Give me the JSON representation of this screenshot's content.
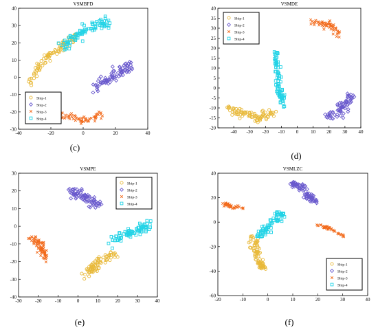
{
  "colors": {
    "ship1": "#e8b93a",
    "ship2": "#6a5acd",
    "ship3": "#f26a1b",
    "ship4": "#22d3e6",
    "axis": "#000000",
    "outlier_green": "#2e8b57"
  },
  "chart_data": [
    {
      "type": "scatter",
      "panel_caption": "(c)",
      "title": "VSMBFD",
      "xlim": [
        -40,
        40
      ],
      "ylim": [
        -30,
        40
      ],
      "xticks": [
        -40,
        -20,
        0,
        20,
        40
      ],
      "yticks": [
        -30,
        -20,
        -10,
        0,
        10,
        20,
        30,
        40
      ],
      "legend_position": "bottom-left",
      "series": [
        {
          "name": "Ship-1",
          "color_key": "ship1",
          "clusters": [
            {
              "path": [
                [
                  -35,
                  -4
                ],
                [
                  -30,
                  2
                ],
                [
                  -26,
                  8
                ],
                [
                  -22,
                  12
                ],
                [
                  -16,
                  16
                ],
                [
                  -12,
                  18
                ],
                [
                  -8,
                  22
                ],
                [
                  -4,
                  24
                ]
              ],
              "n": 90,
              "spread": 2.2
            }
          ]
        },
        {
          "name": "Ship-2",
          "color_key": "ship2",
          "clusters": [
            {
              "path": [
                [
                  8,
                  -5
                ],
                [
                  12,
                  -2
                ],
                [
                  18,
                  0
                ],
                [
                  22,
                  2
                ],
                [
                  26,
                  5
                ],
                [
                  30,
                  7
                ]
              ],
              "n": 80,
              "spread": 2.6
            }
          ]
        },
        {
          "name": "Ship-3",
          "color_key": "ship3",
          "clusters": [
            {
              "path": [
                [
                  -14,
                  -22
                ],
                [
                  -8,
                  -23
                ],
                [
                  -2,
                  -25
                ],
                [
                  4,
                  -25
                ],
                [
                  8,
                  -23
                ],
                [
                  12,
                  -21
                ]
              ],
              "n": 55,
              "spread": 1.8
            }
          ]
        },
        {
          "name": "Ship-4",
          "color_key": "ship4",
          "clusters": [
            {
              "path": [
                [
                  -13,
                  18
                ],
                [
                  -8,
                  22
                ],
                [
                  -3,
                  25
                ],
                [
                  2,
                  28
                ],
                [
                  6,
                  30
                ],
                [
                  10,
                  31
                ],
                [
                  16,
                  31
                ]
              ],
              "n": 90,
              "spread": 2.4
            }
          ]
        }
      ]
    },
    {
      "type": "scatter",
      "panel_caption": "(d)",
      "title": "VSMDE",
      "xlim": [
        -50,
        40
      ],
      "ylim": [
        -20,
        40
      ],
      "xticks": [
        -40,
        -30,
        -20,
        -10,
        0,
        10,
        20,
        30,
        40
      ],
      "yticks": [
        -20,
        -15,
        -10,
        -5,
        0,
        5,
        10,
        15,
        20,
        25,
        30,
        35,
        40
      ],
      "legend_position": "top-left",
      "series": [
        {
          "name": "Ship-1",
          "color_key": "ship1",
          "clusters": [
            {
              "path": [
                [
                  -44,
                  -10
                ],
                [
                  -38,
                  -12
                ],
                [
                  -32,
                  -13
                ],
                [
                  -26,
                  -15
                ],
                [
                  -20,
                  -14
                ],
                [
                  -15,
                  -12
                ]
              ],
              "n": 90,
              "spread": 1.5
            }
          ]
        },
        {
          "name": "Ship-2",
          "color_key": "ship2",
          "clusters": [
            {
              "path": [
                [
                  20,
                  -15
                ],
                [
                  26,
                  -12
                ],
                [
                  30,
                  -8
                ],
                [
                  33,
                  -4
                ]
              ],
              "n": 70,
              "spread": 2.2
            }
          ]
        },
        {
          "name": "Ship-3",
          "color_key": "ship3",
          "clusters": [
            {
              "path": [
                [
                  8,
                  33
                ],
                [
                  14,
                  33
                ],
                [
                  20,
                  32
                ],
                [
                  24,
                  30
                ],
                [
                  26,
                  27
                ]
              ],
              "n": 55,
              "spread": 1.6
            }
          ]
        },
        {
          "name": "Ship-4",
          "color_key": "ship4",
          "clusters": [
            {
              "path": [
                [
                  -14,
                  18
                ],
                [
                  -13,
                  12
                ],
                [
                  -12,
                  6
                ],
                [
                  -11,
                  0
                ],
                [
                  -10,
                  -4
                ],
                [
                  -10,
                  -8
                ]
              ],
              "n": 80,
              "spread": 1.5
            }
          ]
        }
      ]
    },
    {
      "type": "scatter",
      "panel_caption": "(e)",
      "title": "VSMPE",
      "xlim": [
        -30,
        40
      ],
      "ylim": [
        -40,
        30
      ],
      "xticks": [
        -30,
        -20,
        -10,
        0,
        10,
        20,
        30,
        40
      ],
      "yticks": [
        -40,
        -30,
        -20,
        -10,
        0,
        10,
        20,
        30
      ],
      "legend_position": "top-right",
      "series": [
        {
          "name": "Ship-1",
          "color_key": "ship1",
          "clusters": [
            {
              "path": [
                [
                  4,
                  -28
                ],
                [
                  7,
                  -24
                ],
                [
                  10,
                  -21
                ],
                [
                  13,
                  -18
                ],
                [
                  18,
                  -16
                ]
              ],
              "n": 80,
              "spread": 2.3
            }
          ]
        },
        {
          "name": "Ship-2",
          "color_key": "ship2",
          "clusters": [
            {
              "path": [
                [
                  -4,
                  20
                ],
                [
                  0,
                  18
                ],
                [
                  4,
                  16
                ],
                [
                  8,
                  14
                ],
                [
                  10,
                  12
                ]
              ],
              "n": 80,
              "spread": 2.8
            }
          ]
        },
        {
          "name": "Ship-3",
          "color_key": "ship3",
          "clusters": [
            {
              "path": [
                [
                  -24,
                  -6
                ],
                [
                  -22,
                  -8
                ],
                [
                  -20,
                  -10
                ],
                [
                  -18,
                  -14
                ],
                [
                  -16,
                  -18
                ]
              ],
              "n": 70,
              "spread": 2.3
            }
          ]
        },
        {
          "name": "Ship-4",
          "color_key": "ship4",
          "clusters": [
            {
              "path": [
                [
                  18,
                  -8
                ],
                [
                  22,
                  -6
                ],
                [
                  26,
                  -4
                ],
                [
                  30,
                  -2
                ],
                [
                  34,
                  0
                ],
                [
                  36,
                  2
                ]
              ],
              "n": 85,
              "spread": 2.3
            }
          ]
        }
      ]
    },
    {
      "type": "scatter",
      "panel_caption": "(f)",
      "title": "VSMLZC",
      "xlim": [
        -20,
        40
      ],
      "ylim": [
        -60,
        40
      ],
      "xticks": [
        -20,
        -10,
        0,
        10,
        20,
        30,
        40
      ],
      "yticks": [
        -60,
        -40,
        -20,
        0,
        20,
        40
      ],
      "legend_position": "bottom-right",
      "series": [
        {
          "name": "Ship-1",
          "color_key": "ship1",
          "clusters": [
            {
              "path": [
                [
                  -6,
                  -10
                ],
                [
                  -5,
                  -20
                ],
                [
                  -4,
                  -28
                ],
                [
                  -3,
                  -34
                ],
                [
                  -2,
                  -38
                ]
              ],
              "n": 80,
              "spread": 2.0
            }
          ]
        },
        {
          "name": "Ship-2",
          "color_key": "ship2",
          "clusters": [
            {
              "path": [
                [
                  10,
                  32
                ],
                [
                  13,
                  28
                ],
                [
                  15,
                  24
                ],
                [
                  17,
                  20
                ],
                [
                  19,
                  16
                ]
              ],
              "n": 80,
              "spread": 2.3
            }
          ]
        },
        {
          "name": "Ship-3",
          "color_key": "ship3",
          "clusters": [
            {
              "path": [
                [
                  -18,
                  15
                ],
                [
                  -15,
                  13
                ],
                [
                  -12,
                  12
                ],
                [
                  -10,
                  11
                ]
              ],
              "n": 35,
              "spread": 1.4
            },
            {
              "path": [
                [
                  20,
                  -2
                ],
                [
                  24,
                  -5
                ],
                [
                  28,
                  -8
                ],
                [
                  31,
                  -12
                ]
              ],
              "n": 40,
              "spread": 1.3
            }
          ]
        },
        {
          "name": "Ship-4",
          "color_key": "ship4",
          "clusters": [
            {
              "path": [
                [
                  -4,
                  -12
                ],
                [
                  -1,
                  -6
                ],
                [
                  2,
                  0
                ],
                [
                  4,
                  4
                ],
                [
                  5,
                  8
                ]
              ],
              "n": 75,
              "spread": 2.4
            }
          ]
        }
      ]
    }
  ]
}
